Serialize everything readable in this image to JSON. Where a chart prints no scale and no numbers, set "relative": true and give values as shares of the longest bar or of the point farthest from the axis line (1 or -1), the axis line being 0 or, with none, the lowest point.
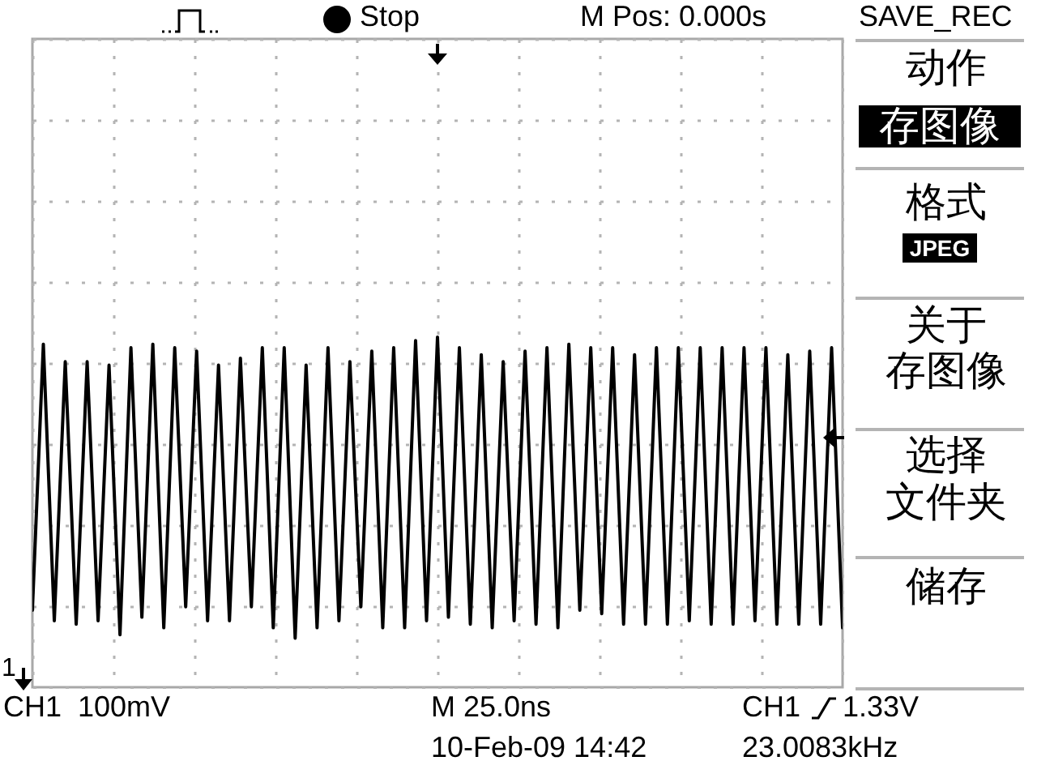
{
  "chart_data": {
    "type": "line",
    "relative": true,
    "grid": true,
    "color": "#000000",
    "categories": [
      null,
      null,
      null,
      null,
      null,
      null,
      null,
      null,
      null,
      null,
      null,
      null,
      null,
      null,
      null,
      null,
      null,
      null,
      null,
      null,
      null,
      null,
      null,
      null,
      null,
      null,
      null,
      null,
      null,
      null,
      null,
      null,
      null,
      null,
      null,
      null,
      null,
      null,
      null,
      null,
      null,
      null,
      null,
      null,
      null,
      null,
      null,
      null,
      null,
      null,
      null,
      null,
      null,
      null,
      null,
      null,
      null,
      null,
      null,
      null,
      null,
      null,
      null,
      null,
      null,
      null,
      null,
      null,
      null,
      null,
      null,
      null,
      null,
      null,
      null
    ],
    "values": [
      0.22,
      0.98,
      0.19,
      0.93,
      0.18,
      0.93,
      0.19,
      0.92,
      0.15,
      0.97,
      0.2,
      0.98,
      0.17,
      0.97,
      0.23,
      0.96,
      0.19,
      0.92,
      0.19,
      0.94,
      0.23,
      0.97,
      0.17,
      0.97,
      0.14,
      0.92,
      0.17,
      0.97,
      0.19,
      0.93,
      0.23,
      0.96,
      0.17,
      0.97,
      0.17,
      0.99,
      0.19,
      1.0,
      0.2,
      0.97,
      0.18,
      0.95,
      0.17,
      0.93,
      0.19,
      0.96,
      0.18,
      0.97,
      0.17,
      0.98,
      0.22,
      0.97,
      0.21,
      0.97,
      0.18,
      0.95,
      0.18,
      0.97,
      0.18,
      0.97,
      0.19,
      0.97,
      0.18,
      0.97,
      0.18,
      0.97,
      0.19,
      0.97,
      0.18,
      0.95,
      0.18,
      0.96,
      0.18,
      0.97,
      0.17
    ],
    "annotations": [
      "Stop",
      "M Pos: 0.000s",
      "SAVE_REC",
      "动作",
      "存图像",
      "格式",
      "JPEG",
      "关于",
      "存图像",
      "选择",
      "文件夹",
      "储存",
      "1",
      "CH1  100mV",
      "M 25.0ns",
      "CH1",
      "1.33V",
      "10-Feb-09 14:42",
      "23.0083kHz"
    ]
  }
}
